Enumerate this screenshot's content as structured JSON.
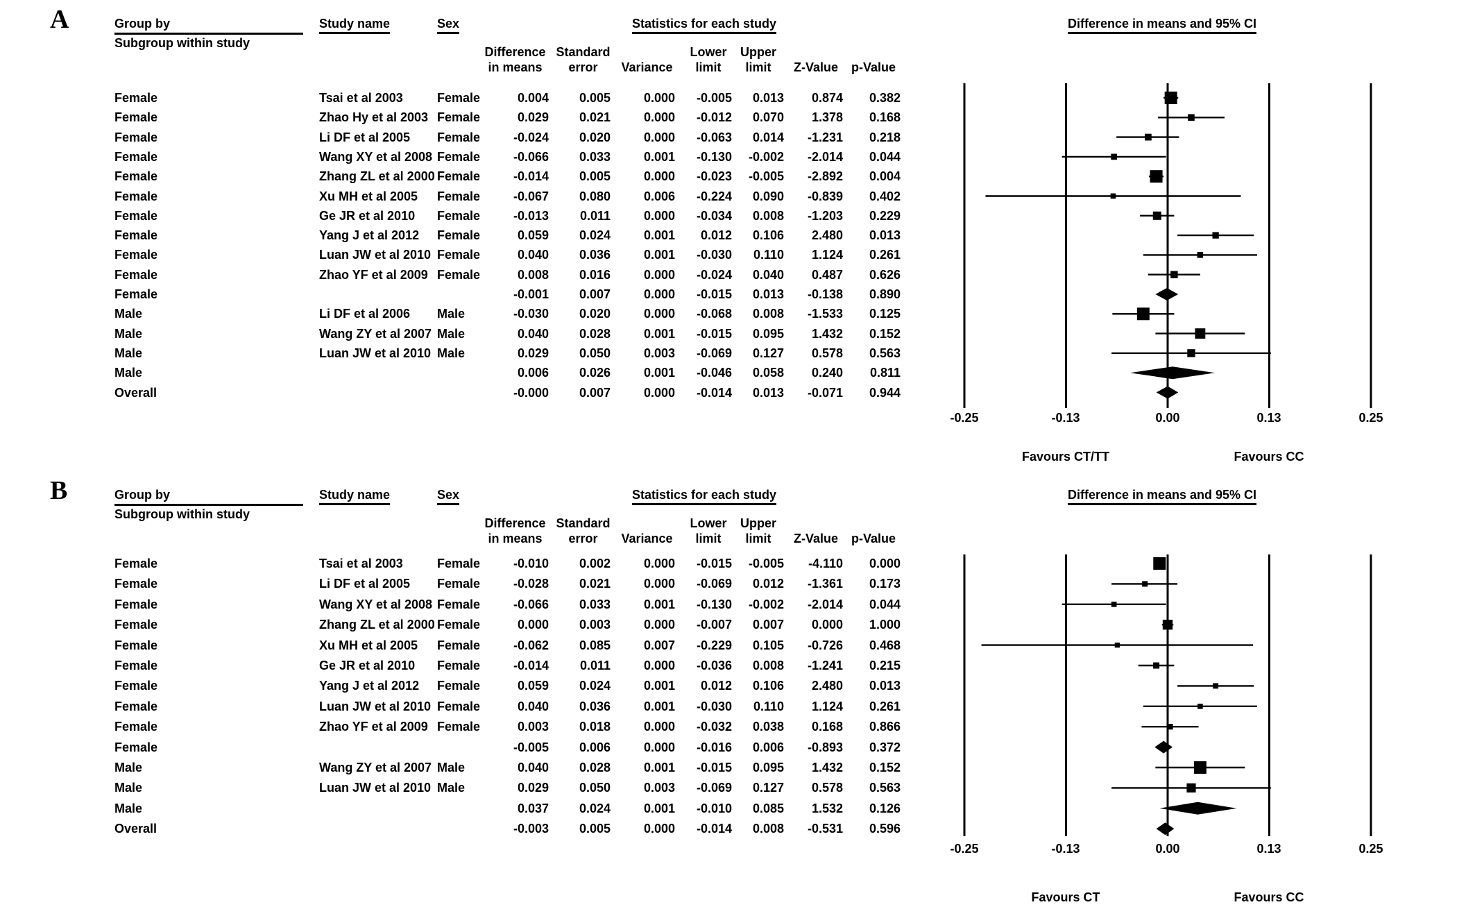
{
  "chart_data": [
    {
      "type": "forest",
      "panel_letter": "A",
      "title": "Difference in means and 95% CI",
      "stats_title": "Statistics for each study",
      "header": {
        "group_by_line1": "Group by",
        "group_by_line2": "Subgroup within study",
        "study_name": "Study name",
        "sex": "Sex"
      },
      "column_headers": [
        {
          "line1": "Difference",
          "line2": "in means"
        },
        {
          "line1": "Standard",
          "line2": "error"
        },
        {
          "line1": "",
          "line2": "Variance"
        },
        {
          "line1": "Lower",
          "line2": "limit"
        },
        {
          "line1": "Upper",
          "line2": "limit"
        },
        {
          "line1": "",
          "line2": "Z-Value"
        },
        {
          "line1": "",
          "line2": "p-Value"
        }
      ],
      "axis": {
        "xlim": [
          -0.25,
          0.25
        ],
        "tick_values": [
          -0.25,
          -0.125,
          0,
          0.125,
          0.25
        ],
        "tick_labels": [
          "-0.25",
          "-0.13",
          "0.00",
          "0.13",
          "0.25"
        ]
      },
      "favours_left": "Favours CT/TT",
      "favours_right": "Favours CC",
      "rows": [
        {
          "type": "study",
          "group": "Female",
          "study": "Tsai et al 2003",
          "sex": "Female",
          "diff": "0.004",
          "se": "0.005",
          "variance": "0.000",
          "lower": "-0.005",
          "upper": "0.013",
          "z": "0.874",
          "p": "0.382"
        },
        {
          "type": "study",
          "group": "Female",
          "study": "Zhao Hy et al 2003",
          "sex": "Female",
          "diff": "0.029",
          "se": "0.021",
          "variance": "0.000",
          "lower": "-0.012",
          "upper": "0.070",
          "z": "1.378",
          "p": "0.168"
        },
        {
          "type": "study",
          "group": "Female",
          "study": "Li DF et al 2005",
          "sex": "Female",
          "diff": "-0.024",
          "se": "0.020",
          "variance": "0.000",
          "lower": "-0.063",
          "upper": "0.014",
          "z": "-1.231",
          "p": "0.218"
        },
        {
          "type": "study",
          "group": "Female",
          "study": "Wang XY et al 2008",
          "sex": "Female",
          "diff": "-0.066",
          "se": "0.033",
          "variance": "0.001",
          "lower": "-0.130",
          "upper": "-0.002",
          "z": "-2.014",
          "p": "0.044"
        },
        {
          "type": "study",
          "group": "Female",
          "study": "Zhang ZL et al 2000",
          "sex": "Female",
          "diff": "-0.014",
          "se": "0.005",
          "variance": "0.000",
          "lower": "-0.023",
          "upper": "-0.005",
          "z": "-2.892",
          "p": "0.004"
        },
        {
          "type": "study",
          "group": "Female",
          "study": "Xu MH et al 2005",
          "sex": "Female",
          "diff": "-0.067",
          "se": "0.080",
          "variance": "0.006",
          "lower": "-0.224",
          "upper": "0.090",
          "z": "-0.839",
          "p": "0.402"
        },
        {
          "type": "study",
          "group": "Female",
          "study": "Ge JR et al 2010",
          "sex": "Female",
          "diff": "-0.013",
          "se": "0.011",
          "variance": "0.000",
          "lower": "-0.034",
          "upper": "0.008",
          "z": "-1.203",
          "p": "0.229"
        },
        {
          "type": "study",
          "group": "Female",
          "study": "Yang J et al 2012",
          "sex": "Female",
          "diff": "0.059",
          "se": "0.024",
          "variance": "0.001",
          "lower": "0.012",
          "upper": "0.106",
          "z": "2.480",
          "p": "0.013"
        },
        {
          "type": "study",
          "group": "Female",
          "study": "Luan JW et al 2010",
          "sex": "Female",
          "diff": "0.040",
          "se": "0.036",
          "variance": "0.001",
          "lower": "-0.030",
          "upper": "0.110",
          "z": "1.124",
          "p": "0.261"
        },
        {
          "type": "study",
          "group": "Female",
          "study": "Zhao YF et al 2009",
          "sex": "Female",
          "diff": "0.008",
          "se": "0.016",
          "variance": "0.000",
          "lower": "-0.024",
          "upper": "0.040",
          "z": "0.487",
          "p": "0.626"
        },
        {
          "type": "subgroup",
          "group": "Female",
          "study": "",
          "sex": "",
          "diff": "-0.001",
          "se": "0.007",
          "variance": "0.000",
          "lower": "-0.015",
          "upper": "0.013",
          "z": "-0.138",
          "p": "0.890"
        },
        {
          "type": "study",
          "group": "Male",
          "study": "Li DF et al 2006",
          "sex": "Male",
          "diff": "-0.030",
          "se": "0.020",
          "variance": "0.000",
          "lower": "-0.068",
          "upper": "0.008",
          "z": "-1.533",
          "p": "0.125"
        },
        {
          "type": "study",
          "group": "Male",
          "study": "Wang ZY et al 2007",
          "sex": "Male",
          "diff": "0.040",
          "se": "0.028",
          "variance": "0.001",
          "lower": "-0.015",
          "upper": "0.095",
          "z": "1.432",
          "p": "0.152"
        },
        {
          "type": "study",
          "group": "Male",
          "study": "Luan JW et al 2010",
          "sex": "Male",
          "diff": "0.029",
          "se": "0.050",
          "variance": "0.003",
          "lower": "-0.069",
          "upper": "0.127",
          "z": "0.578",
          "p": "0.563"
        },
        {
          "type": "subgroup",
          "group": "Male",
          "study": "",
          "sex": "",
          "diff": "0.006",
          "se": "0.026",
          "variance": "0.001",
          "lower": "-0.046",
          "upper": "0.058",
          "z": "0.240",
          "p": "0.811"
        },
        {
          "type": "overall",
          "group": "Overall",
          "study": "",
          "sex": "",
          "diff": "-0.000",
          "se": "0.007",
          "variance": "0.000",
          "lower": "-0.014",
          "upper": "0.013",
          "z": "-0.071",
          "p": "0.944"
        }
      ]
    },
    {
      "type": "forest",
      "panel_letter": "B",
      "title": "Difference in means and 95% CI",
      "stats_title": "Statistics for each study",
      "header": {
        "group_by_line1": "Group by",
        "group_by_line2": "Subgroup within study",
        "study_name": "Study name",
        "sex": "Sex"
      },
      "column_headers": [
        {
          "line1": "Difference",
          "line2": "in means"
        },
        {
          "line1": "Standard",
          "line2": "error"
        },
        {
          "line1": "",
          "line2": "Variance"
        },
        {
          "line1": "Lower",
          "line2": "limit"
        },
        {
          "line1": "Upper",
          "line2": "limit"
        },
        {
          "line1": "",
          "line2": "Z-Value"
        },
        {
          "line1": "",
          "line2": "p-Value"
        }
      ],
      "axis": {
        "xlim": [
          -0.25,
          0.25
        ],
        "tick_values": [
          -0.25,
          -0.125,
          0,
          0.125,
          0.25
        ],
        "tick_labels": [
          "-0.25",
          "-0.13",
          "0.00",
          "0.13",
          "0.25"
        ]
      },
      "favours_left": "Favours CT",
      "favours_right": "Favours CC",
      "rows": [
        {
          "type": "study",
          "group": "Female",
          "study": "Tsai et al 2003",
          "sex": "Female",
          "diff": "-0.010",
          "se": "0.002",
          "variance": "0.000",
          "lower": "-0.015",
          "upper": "-0.005",
          "z": "-4.110",
          "p": "0.000"
        },
        {
          "type": "study",
          "group": "Female",
          "study": "Li DF et al 2005",
          "sex": "Female",
          "diff": "-0.028",
          "se": "0.021",
          "variance": "0.000",
          "lower": "-0.069",
          "upper": "0.012",
          "z": "-1.361",
          "p": "0.173"
        },
        {
          "type": "study",
          "group": "Female",
          "study": "Wang XY et al 2008",
          "sex": "Female",
          "diff": "-0.066",
          "se": "0.033",
          "variance": "0.001",
          "lower": "-0.130",
          "upper": "-0.002",
          "z": "-2.014",
          "p": "0.044"
        },
        {
          "type": "study",
          "group": "Female",
          "study": "Zhang ZL et al 2000",
          "sex": "Female",
          "diff": "0.000",
          "se": "0.003",
          "variance": "0.000",
          "lower": "-0.007",
          "upper": "0.007",
          "z": "0.000",
          "p": "1.000"
        },
        {
          "type": "study",
          "group": "Female",
          "study": "Xu MH et al 2005",
          "sex": "Female",
          "diff": "-0.062",
          "se": "0.085",
          "variance": "0.007",
          "lower": "-0.229",
          "upper": "0.105",
          "z": "-0.726",
          "p": "0.468"
        },
        {
          "type": "study",
          "group": "Female",
          "study": "Ge JR et al 2010",
          "sex": "Female",
          "diff": "-0.014",
          "se": "0.011",
          "variance": "0.000",
          "lower": "-0.036",
          "upper": "0.008",
          "z": "-1.241",
          "p": "0.215"
        },
        {
          "type": "study",
          "group": "Female",
          "study": "Yang J et al 2012",
          "sex": "Female",
          "diff": "0.059",
          "se": "0.024",
          "variance": "0.001",
          "lower": "0.012",
          "upper": "0.106",
          "z": "2.480",
          "p": "0.013"
        },
        {
          "type": "study",
          "group": "Female",
          "study": "Luan JW et al 2010",
          "sex": "Female",
          "diff": "0.040",
          "se": "0.036",
          "variance": "0.001",
          "lower": "-0.030",
          "upper": "0.110",
          "z": "1.124",
          "p": "0.261"
        },
        {
          "type": "study",
          "group": "Female",
          "study": "Zhao YF et al 2009",
          "sex": "Female",
          "diff": "0.003",
          "se": "0.018",
          "variance": "0.000",
          "lower": "-0.032",
          "upper": "0.038",
          "z": "0.168",
          "p": "0.866"
        },
        {
          "type": "subgroup",
          "group": "Female",
          "study": "",
          "sex": "",
          "diff": "-0.005",
          "se": "0.006",
          "variance": "0.000",
          "lower": "-0.016",
          "upper": "0.006",
          "z": "-0.893",
          "p": "0.372"
        },
        {
          "type": "study",
          "group": "Male",
          "study": "Wang ZY et al 2007",
          "sex": "Male",
          "diff": "0.040",
          "se": "0.028",
          "variance": "0.001",
          "lower": "-0.015",
          "upper": "0.095",
          "z": "1.432",
          "p": "0.152"
        },
        {
          "type": "study",
          "group": "Male",
          "study": "Luan JW et al 2010",
          "sex": "Male",
          "diff": "0.029",
          "se": "0.050",
          "variance": "0.003",
          "lower": "-0.069",
          "upper": "0.127",
          "z": "0.578",
          "p": "0.563"
        },
        {
          "type": "subgroup",
          "group": "Male",
          "study": "",
          "sex": "",
          "diff": "0.037",
          "se": "0.024",
          "variance": "0.001",
          "lower": "-0.010",
          "upper": "0.085",
          "z": "1.532",
          "p": "0.126"
        },
        {
          "type": "overall",
          "group": "Overall",
          "study": "",
          "sex": "",
          "diff": "-0.003",
          "se": "0.005",
          "variance": "0.000",
          "lower": "-0.014",
          "upper": "0.008",
          "z": "-0.531",
          "p": "0.596"
        }
      ]
    }
  ]
}
